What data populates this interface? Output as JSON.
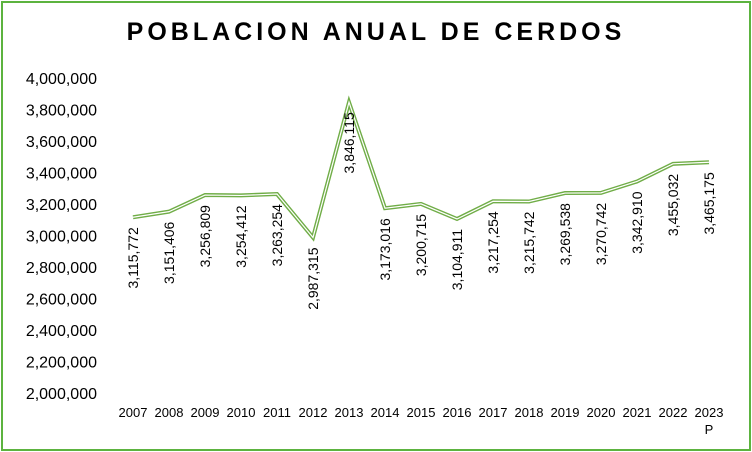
{
  "chart_data": {
    "type": "line",
    "title": "POBLACION ANUAL DE CERDOS",
    "categories": [
      "2007",
      "2008",
      "2009",
      "2010",
      "2011",
      "2012",
      "2013",
      "2014",
      "2015",
      "2016",
      "2017",
      "2018",
      "2019",
      "2020",
      "2021",
      "2022",
      "2023 P"
    ],
    "series": [
      {
        "values": [
          3115772,
          3151406,
          3256809,
          3254412,
          3263254,
          2987315,
          3846115,
          3173016,
          3200715,
          3104911,
          3217254,
          3215742,
          3269538,
          3270742,
          3342910,
          3455032,
          3465175
        ],
        "data_labels": [
          "3,115,772",
          "3,151,406",
          "3,256,809",
          "3,254,412",
          "3,263,254",
          "2,987,315",
          "3,846,115",
          "3,173,016",
          "3,200,715",
          "3,104,911",
          "3,217,254",
          "3,215,742",
          "3,269,538",
          "3,270,742",
          "3,342,910",
          "3,455,032",
          "3,465,175"
        ],
        "color": "#70ad47"
      }
    ],
    "y_ticks": [
      "2,000,000",
      "2,200,000",
      "2,400,000",
      "2,600,000",
      "2,800,000",
      "3,000,000",
      "3,200,000",
      "3,400,000",
      "3,600,000",
      "3,800,000",
      "4,000,000"
    ],
    "ylim": [
      2000000,
      4000000
    ],
    "grid": false,
    "legend": "none",
    "border_color": "#5cb33f"
  }
}
